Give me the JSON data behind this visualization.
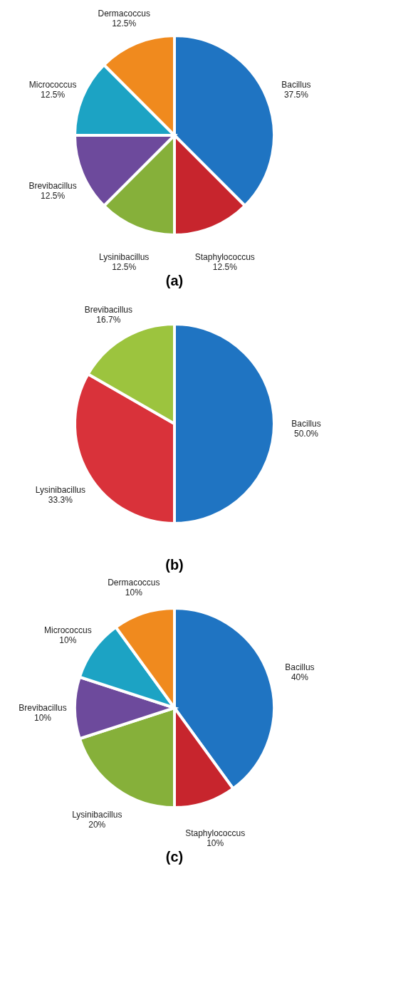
{
  "chart_data": [
    {
      "type": "pie",
      "title": "(a)",
      "categories": [
        "Bacillus",
        "Staphylococcus",
        "Lysinibacillus",
        "Brevibacillus",
        "Micrococcus",
        "Dermacoccus"
      ],
      "values": [
        37.5,
        12.5,
        12.5,
        12.5,
        12.5,
        12.5
      ],
      "colors": [
        "#1f74c2",
        "#c7252d",
        "#86b03a",
        "#6d4a9c",
        "#1ca3c4",
        "#f08a1e"
      ],
      "value_labels": [
        "37.5%",
        "12.5%",
        "12.5%",
        "12.5%",
        "12.5%",
        "12.5%"
      ]
    },
    {
      "type": "pie",
      "title": "(b)",
      "categories": [
        "Bacillus",
        "Lysinibacillus",
        "Brevibacillus"
      ],
      "values": [
        50.0,
        33.3,
        16.7
      ],
      "colors": [
        "#1f74c2",
        "#d9323a",
        "#9cc43e"
      ],
      "value_labels": [
        "50.0%",
        "33.3%",
        "16.7%"
      ]
    },
    {
      "type": "pie",
      "title": "(c)",
      "categories": [
        "Bacillus",
        "Staphylococcus",
        "Lysinibacillus",
        "Brevibacillus",
        "Micrococcus",
        "Dermacoccus"
      ],
      "values": [
        40,
        10,
        20,
        10,
        10,
        10
      ],
      "colors": [
        "#1f74c2",
        "#c7252d",
        "#86b03a",
        "#6d4a9c",
        "#1ca3c4",
        "#f08a1e"
      ],
      "value_labels": [
        "40%",
        "10%",
        "20%",
        "10%",
        "10%",
        "10%"
      ]
    }
  ]
}
